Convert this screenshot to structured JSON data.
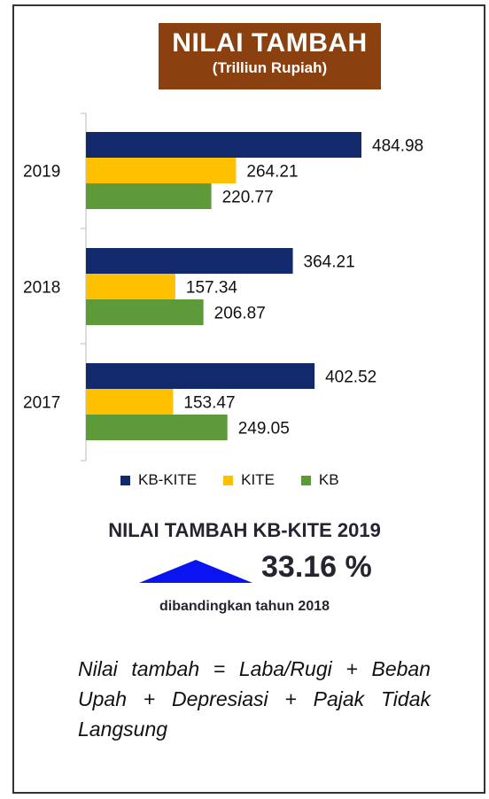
{
  "header": {
    "title": "NILAI TAMBAH",
    "subtitle": "(Trilliun Rupiah)",
    "background": "#8B4010"
  },
  "chart_data": {
    "type": "bar",
    "orientation": "horizontal",
    "categories": [
      "2019",
      "2018",
      "2017"
    ],
    "series": [
      {
        "name": "KB-KITE",
        "color": "#12296B",
        "values": [
          484.98,
          364.21,
          402.52
        ],
        "labels": [
          "484.98",
          "364.21",
          "402.52"
        ]
      },
      {
        "name": "KITE",
        "color": "#FFC000",
        "values": [
          264.21,
          157.34,
          153.47
        ],
        "labels": [
          "264.21",
          "157.34",
          "153.47"
        ]
      },
      {
        "name": "KB",
        "color": "#5C9A3A",
        "values": [
          220.77,
          206.87,
          249.05
        ],
        "labels": [
          "220.77",
          "206.87",
          "249.05"
        ]
      }
    ],
    "xlim": [
      0,
      640
    ],
    "grid": false,
    "legend": "bottom"
  },
  "legend": {
    "items": [
      {
        "label": "KB-KITE",
        "color": "#12296B"
      },
      {
        "label": "KITE",
        "color": "#FFC000"
      },
      {
        "label": "KB",
        "color": "#5C9A3A"
      }
    ]
  },
  "kpi": {
    "heading": "NILAI TAMBAH KB-KITE 2019",
    "value": "33.16 %",
    "trend": "up",
    "arrow_color": "#0A14F0",
    "note": "dibandingkan tahun 2018"
  },
  "formula": "Nilai tambah = Laba/Rugi + Beban Upah + Depresiasi + Pajak Tidak Langsung"
}
